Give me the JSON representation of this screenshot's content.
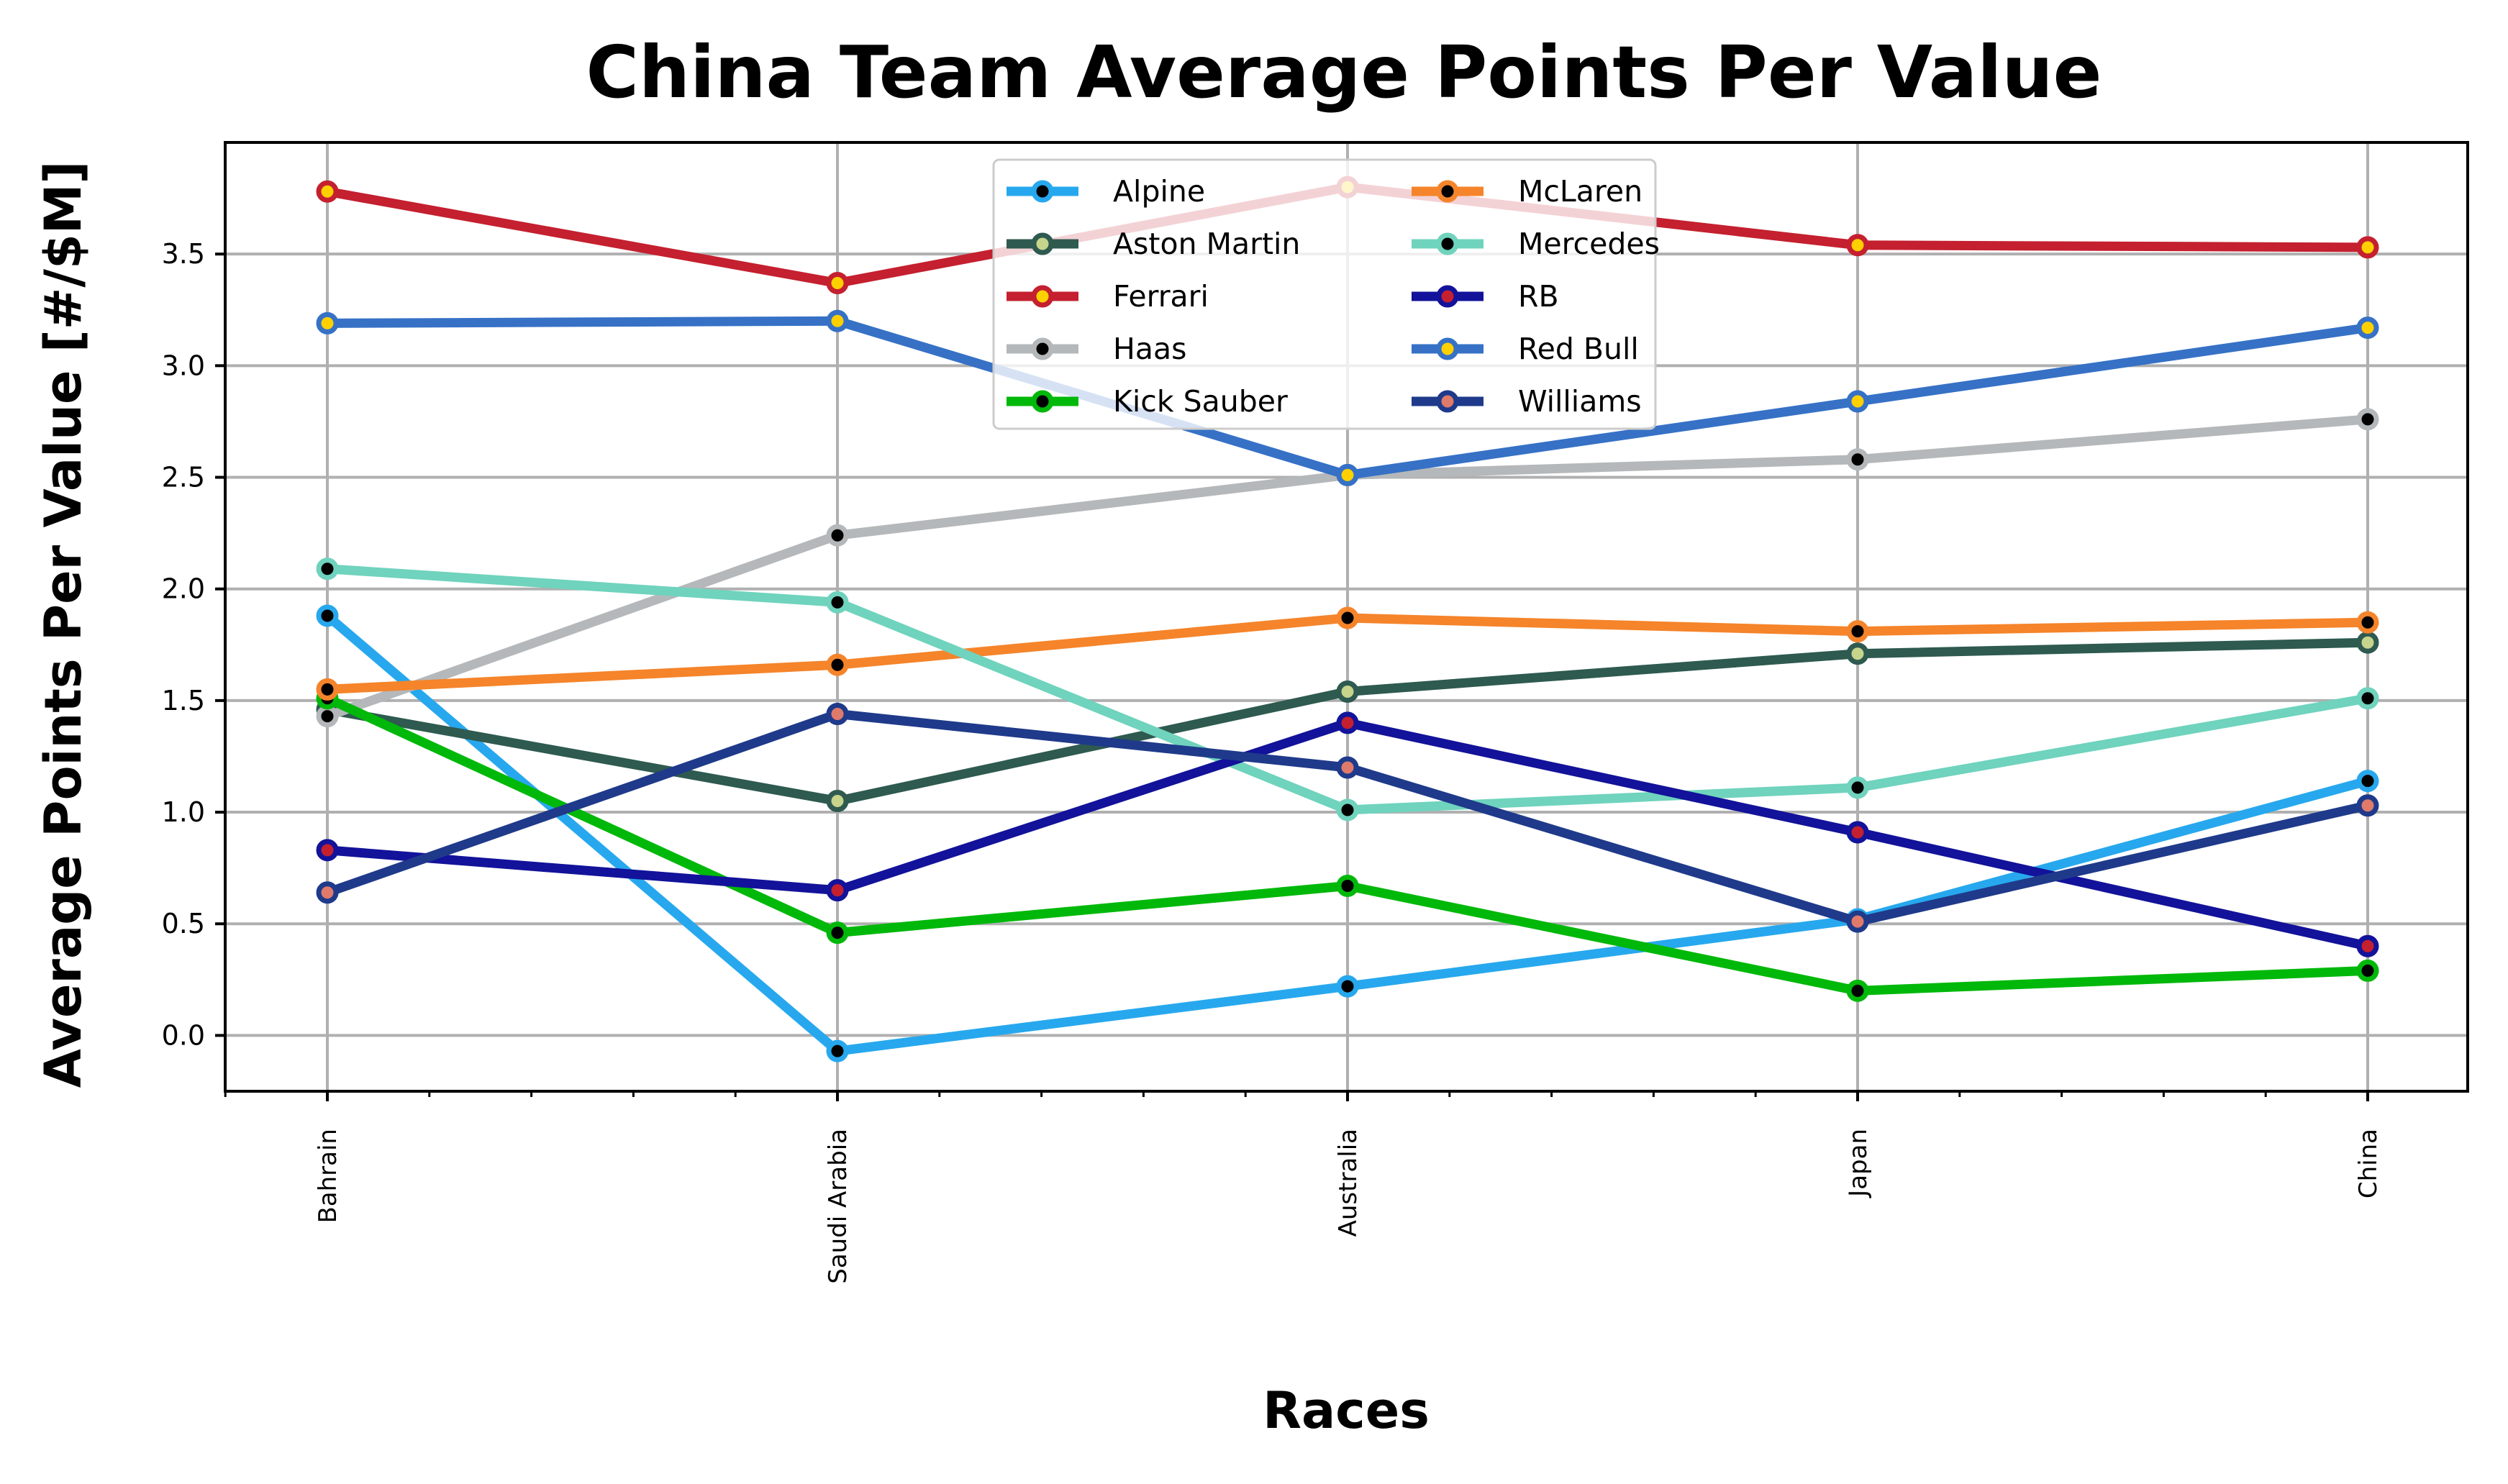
{
  "chart_data": {
    "type": "line",
    "title": "China Team Average Points Per Value",
    "xlabel": "Races",
    "ylabel": "Average Points Per Value [#/$M]",
    "categories": [
      "Bahrain",
      "Saudi Arabia",
      "Australia",
      "Japan",
      "China"
    ],
    "ylim": [
      -0.25,
      4.0
    ],
    "yticks": [
      0.0,
      0.5,
      1.0,
      1.5,
      2.0,
      2.5,
      3.0,
      3.5
    ],
    "ytick_labels": [
      "0.0",
      "0.5",
      "1.0",
      "1.5",
      "2.0",
      "2.5",
      "3.0",
      "3.5"
    ],
    "grid": true,
    "legend_position": "top-center",
    "legend_columns": 2,
    "series": [
      {
        "name": "Alpine",
        "color": "#27a8ee",
        "marker_face": "#000000",
        "marker_edge": "#27a8ee",
        "values": [
          1.88,
          -0.07,
          0.22,
          0.52,
          1.14
        ]
      },
      {
        "name": "Aston Martin",
        "color": "#2e5a50",
        "marker_face": "#c7d48c",
        "marker_edge": "#2e5a50",
        "values": [
          1.46,
          1.05,
          1.54,
          1.71,
          1.76
        ]
      },
      {
        "name": "Ferrari",
        "color": "#c4202f",
        "marker_face": "#ffd000",
        "marker_edge": "#c4202f",
        "values": [
          3.78,
          3.37,
          3.8,
          3.54,
          3.53
        ]
      },
      {
        "name": "Haas",
        "color": "#b5b8ba",
        "marker_face": "#000000",
        "marker_edge": "#b5b8ba",
        "values": [
          1.43,
          2.24,
          2.51,
          2.58,
          2.76
        ]
      },
      {
        "name": "Kick Sauber",
        "color": "#00b80a",
        "marker_face": "#000000",
        "marker_edge": "#00b80a",
        "values": [
          1.51,
          0.46,
          0.67,
          0.2,
          0.29
        ]
      },
      {
        "name": "McLaren",
        "color": "#f5842a",
        "marker_face": "#000000",
        "marker_edge": "#f5842a",
        "values": [
          1.55,
          1.66,
          1.87,
          1.81,
          1.85
        ]
      },
      {
        "name": "Mercedes",
        "color": "#6fd3bd",
        "marker_face": "#000000",
        "marker_edge": "#6fd3bd",
        "values": [
          2.09,
          1.94,
          1.01,
          1.11,
          1.51
        ]
      },
      {
        "name": "RB",
        "color": "#12129a",
        "marker_face": "#c4202f",
        "marker_edge": "#12129a",
        "values": [
          0.83,
          0.65,
          1.4,
          0.91,
          0.4
        ]
      },
      {
        "name": "Red Bull",
        "color": "#3671c6",
        "marker_face": "#ffd000",
        "marker_edge": "#3671c6",
        "values": [
          3.19,
          3.2,
          2.51,
          2.84,
          3.17
        ]
      },
      {
        "name": "Williams",
        "color": "#1f3a8a",
        "marker_face": "#e07a6b",
        "marker_edge": "#1f3a8a",
        "values": [
          0.64,
          1.44,
          1.2,
          0.51,
          1.03
        ]
      }
    ]
  }
}
